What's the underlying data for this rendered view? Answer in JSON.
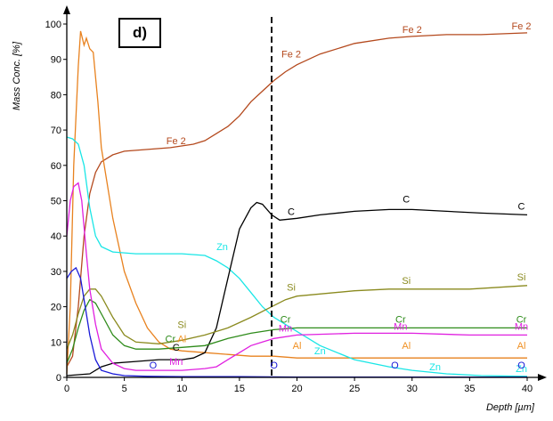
{
  "panel_label": "d)",
  "chart_data": {
    "type": "line",
    "xlabel": "Depth [µm]",
    "ylabel": "Mass Conc. [%]",
    "xlim": [
      0,
      40
    ],
    "ylim": [
      0,
      100
    ],
    "x_ticks": [
      "0",
      "5",
      "10",
      "15",
      "20",
      "25",
      "30",
      "35",
      "40"
    ],
    "y_ticks": [
      "0",
      "10",
      "20",
      "30",
      "40",
      "50",
      "60",
      "70",
      "80",
      "90",
      "100"
    ],
    "marker_line": {
      "x": 17.8,
      "style": "dashed"
    },
    "grid": false,
    "series": [
      {
        "name": "Fe 2",
        "color": "#b4491d",
        "points": [
          [
            0,
            3
          ],
          [
            0.5,
            6
          ],
          [
            1,
            20
          ],
          [
            1.5,
            40
          ],
          [
            2,
            52
          ],
          [
            2.5,
            58
          ],
          [
            3,
            61
          ],
          [
            4,
            63
          ],
          [
            5,
            64
          ],
          [
            7,
            64.5
          ],
          [
            9,
            65
          ],
          [
            11,
            66
          ],
          [
            12,
            67
          ],
          [
            13,
            69
          ],
          [
            14,
            71
          ],
          [
            15,
            74
          ],
          [
            16,
            78
          ],
          [
            17,
            81
          ],
          [
            18,
            84
          ],
          [
            19,
            86.5
          ],
          [
            20,
            88.5
          ],
          [
            22,
            91.5
          ],
          [
            25,
            94.5
          ],
          [
            28,
            96
          ],
          [
            30,
            96.5
          ],
          [
            33,
            97
          ],
          [
            36,
            97
          ],
          [
            40,
            97.5
          ]
        ],
        "labels": [
          [
            9.5,
            66,
            "Fe 2"
          ],
          [
            19.5,
            90.5,
            "Fe 2"
          ],
          [
            30,
            97.5,
            "Fe 2"
          ],
          [
            39.5,
            98.5,
            "Fe 2"
          ]
        ]
      },
      {
        "name": "O",
        "color": "#e8821f",
        "points": [
          [
            0,
            1
          ],
          [
            0.3,
            20
          ],
          [
            0.6,
            60
          ],
          [
            1,
            88
          ],
          [
            1.2,
            98
          ],
          [
            1.5,
            94
          ],
          [
            1.7,
            96
          ],
          [
            2,
            93
          ],
          [
            2.3,
            92
          ],
          [
            2.7,
            78
          ],
          [
            3,
            65
          ],
          [
            4,
            45
          ],
          [
            5,
            30
          ],
          [
            6,
            21
          ],
          [
            7,
            14
          ],
          [
            8,
            10
          ],
          [
            9,
            8
          ],
          [
            10,
            7.5
          ],
          [
            12,
            7
          ],
          [
            14,
            6.5
          ],
          [
            16,
            6
          ],
          [
            18,
            6
          ],
          [
            20,
            5.5
          ],
          [
            25,
            5.5
          ],
          [
            30,
            5.5
          ],
          [
            35,
            5.5
          ],
          [
            40,
            5.5
          ]
        ],
        "labels": []
      },
      {
        "name": "Zn",
        "color": "#19e6e6",
        "points": [
          [
            0,
            68
          ],
          [
            0.5,
            67.5
          ],
          [
            1,
            66
          ],
          [
            1.5,
            60
          ],
          [
            2,
            48
          ],
          [
            2.5,
            40
          ],
          [
            3,
            37
          ],
          [
            4,
            35.5
          ],
          [
            6,
            35
          ],
          [
            8,
            35
          ],
          [
            10,
            35
          ],
          [
            12,
            34.5
          ],
          [
            13,
            33
          ],
          [
            14,
            31
          ],
          [
            15,
            28
          ],
          [
            16,
            24
          ],
          [
            17,
            20
          ],
          [
            18,
            17
          ],
          [
            20,
            13
          ],
          [
            22,
            9
          ],
          [
            25,
            5
          ],
          [
            28,
            3
          ],
          [
            30,
            2
          ],
          [
            33,
            1
          ],
          [
            36,
            0.5
          ],
          [
            40,
            0.3
          ]
        ],
        "labels": [
          [
            13.5,
            36,
            "Zn"
          ],
          [
            22,
            6.5,
            "Zn"
          ],
          [
            32,
            2,
            "Zn"
          ],
          [
            39.5,
            1.5,
            "Zn"
          ]
        ]
      },
      {
        "name": "C",
        "color": "#000000",
        "points": [
          [
            0,
            0.5
          ],
          [
            2,
            1
          ],
          [
            3,
            3
          ],
          [
            4,
            4
          ],
          [
            6,
            4.5
          ],
          [
            8,
            5
          ],
          [
            10,
            5
          ],
          [
            11,
            5.5
          ],
          [
            12,
            7
          ],
          [
            13,
            14
          ],
          [
            14,
            28
          ],
          [
            15,
            42
          ],
          [
            16,
            48
          ],
          [
            16.5,
            49.5
          ],
          [
            17,
            49
          ],
          [
            17.8,
            46
          ],
          [
            18.5,
            44.5
          ],
          [
            20,
            45
          ],
          [
            22,
            46
          ],
          [
            25,
            47
          ],
          [
            28,
            47.5
          ],
          [
            30,
            47.5
          ],
          [
            33,
            47
          ],
          [
            36,
            46.5
          ],
          [
            40,
            46
          ]
        ],
        "labels": [
          [
            9.5,
            7.5,
            "C"
          ],
          [
            19.5,
            46,
            "C"
          ],
          [
            29.5,
            49.5,
            "C"
          ],
          [
            39.5,
            47.5,
            "C"
          ]
        ]
      },
      {
        "name": "Si",
        "color": "#8a8a1e",
        "points": [
          [
            0,
            8
          ],
          [
            0.5,
            12
          ],
          [
            1,
            18
          ],
          [
            1.5,
            23
          ],
          [
            2,
            25
          ],
          [
            2.5,
            25
          ],
          [
            3,
            23
          ],
          [
            4,
            17
          ],
          [
            5,
            12
          ],
          [
            6,
            10
          ],
          [
            8,
            9.5
          ],
          [
            10,
            10.5
          ],
          [
            12,
            12
          ],
          [
            14,
            14
          ],
          [
            16,
            17
          ],
          [
            17.8,
            20
          ],
          [
            19,
            22
          ],
          [
            20,
            23
          ],
          [
            25,
            24.5
          ],
          [
            28,
            25
          ],
          [
            30,
            25
          ],
          [
            35,
            25
          ],
          [
            40,
            26
          ]
        ],
        "labels": [
          [
            10,
            14,
            "Si"
          ],
          [
            19.5,
            24.5,
            "Si"
          ],
          [
            29.5,
            26.5,
            "Si"
          ],
          [
            39.5,
            27.5,
            "Si"
          ]
        ]
      },
      {
        "name": "Cr",
        "color": "#2e8b1a",
        "points": [
          [
            0,
            4
          ],
          [
            0.5,
            8
          ],
          [
            1,
            14
          ],
          [
            1.5,
            19
          ],
          [
            2,
            22
          ],
          [
            2.5,
            21
          ],
          [
            3,
            18
          ],
          [
            4,
            12
          ],
          [
            5,
            9
          ],
          [
            6,
            8
          ],
          [
            8,
            8
          ],
          [
            10,
            8.5
          ],
          [
            12,
            9
          ],
          [
            14,
            11
          ],
          [
            16,
            12.5
          ],
          [
            18,
            13.5
          ],
          [
            20,
            14
          ],
          [
            25,
            14
          ],
          [
            30,
            14
          ],
          [
            35,
            14
          ],
          [
            40,
            14
          ]
        ],
        "labels": [
          [
            9,
            10,
            "Cr"
          ],
          [
            19,
            15.5,
            "Cr"
          ],
          [
            29,
            15.5,
            "Cr"
          ],
          [
            39.5,
            15.5,
            "Cr"
          ]
        ]
      },
      {
        "name": "Al",
        "color": "#f09022",
        "points": [],
        "labels": [
          [
            10,
            10,
            "Al"
          ],
          [
            20,
            8,
            "Al"
          ],
          [
            29.5,
            8,
            "Al"
          ],
          [
            39.5,
            8,
            "Al"
          ]
        ]
      },
      {
        "name": "Mn",
        "color": "#e020e0",
        "points": [
          [
            0,
            40
          ],
          [
            0.3,
            50
          ],
          [
            0.6,
            54
          ],
          [
            1,
            55
          ],
          [
            1.3,
            50
          ],
          [
            1.7,
            35
          ],
          [
            2,
            25
          ],
          [
            2.5,
            15
          ],
          [
            3,
            8
          ],
          [
            4,
            4
          ],
          [
            5,
            2.5
          ],
          [
            6,
            2
          ],
          [
            8,
            2
          ],
          [
            10,
            2
          ],
          [
            12,
            2.5
          ],
          [
            13,
            3
          ],
          [
            14,
            5
          ],
          [
            15,
            7
          ],
          [
            16,
            9
          ],
          [
            17,
            10
          ],
          [
            18,
            11
          ],
          [
            20,
            12
          ],
          [
            25,
            12.5
          ],
          [
            30,
            12.5
          ],
          [
            35,
            12
          ],
          [
            40,
            12
          ]
        ],
        "labels": [
          [
            9.5,
            3.5,
            "Mn"
          ],
          [
            19,
            13,
            "Mn"
          ],
          [
            29,
            13.5,
            "Mn"
          ],
          [
            39.5,
            13.5,
            "Mn"
          ]
        ]
      },
      {
        "name": "O",
        "color": "#1a1ad8",
        "points": [
          [
            0,
            28
          ],
          [
            0.4,
            30
          ],
          [
            0.8,
            31
          ],
          [
            1.2,
            28
          ],
          [
            1.6,
            20
          ],
          [
            2,
            12
          ],
          [
            2.5,
            5
          ],
          [
            3,
            2
          ],
          [
            4,
            1
          ],
          [
            5,
            0.5
          ],
          [
            7,
            0.3
          ],
          [
            10,
            0.2
          ],
          [
            15,
            0.2
          ],
          [
            20,
            0.1
          ],
          [
            30,
            0.1
          ],
          [
            40,
            0.1
          ]
        ],
        "labels": [
          [
            7.5,
            2.5,
            "O"
          ],
          [
            18,
            2.5,
            "O"
          ],
          [
            28.5,
            2.5,
            "O"
          ],
          [
            39.5,
            2.5,
            "O"
          ]
        ]
      }
    ]
  }
}
